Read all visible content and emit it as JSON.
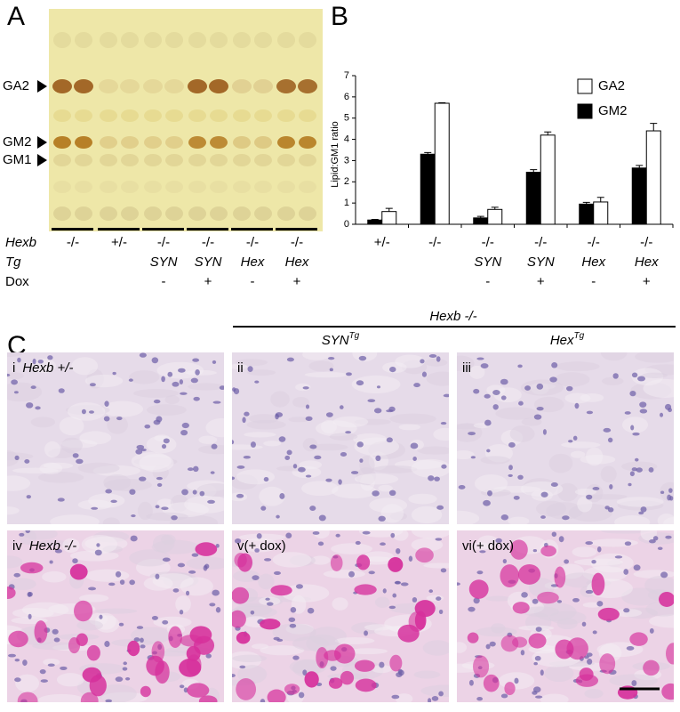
{
  "panel_labels": [
    "A",
    "B",
    "C"
  ],
  "panel_a": {
    "bands": [
      "GA2",
      "GM2",
      "GM1"
    ],
    "row_labels": [
      "Hexb",
      "Tg",
      "Dox"
    ],
    "genotype": [
      "-/-",
      "+/-",
      "-/-",
      "-/-",
      "-/-",
      "-/-"
    ],
    "tg": [
      null,
      null,
      "SYN",
      "SYN",
      "Hex",
      "Hex"
    ],
    "dox": [
      null,
      null,
      "-",
      "+",
      "-",
      "+"
    ]
  },
  "chart_data": {
    "type": "bar",
    "y_label": "Lipid:GM1 ratio",
    "categories": [
      "+/-",
      "-/-",
      "-/-",
      "-/-",
      "-/-",
      "-/-"
    ],
    "tg_labels": [
      null,
      null,
      "SYN",
      "SYN",
      "Hex",
      "Hex"
    ],
    "dox_labels": [
      null,
      null,
      "-",
      "+",
      "-",
      "+"
    ],
    "series": [
      {
        "name": "GM2",
        "color": "#000000",
        "values": [
          0.2,
          3.3,
          0.3,
          2.45,
          0.95,
          2.65
        ],
        "errors": [
          0.03,
          0.08,
          0.07,
          0.12,
          0.08,
          0.12
        ]
      },
      {
        "name": "GA2",
        "color": "#ffffff",
        "values": [
          0.6,
          5.7,
          0.7,
          4.2,
          1.05,
          4.4
        ],
        "errors": [
          0.15,
          0.02,
          0.1,
          0.15,
          0.22,
          0.35
        ]
      }
    ],
    "legend_order": [
      "GA2",
      "GM2"
    ],
    "ylim": [
      0,
      7
    ],
    "yticks": [
      0,
      1,
      2,
      3,
      4,
      5,
      6,
      7
    ]
  },
  "panel_c": {
    "header": "Hexb -/-",
    "columns": [
      {
        "name": "SYN",
        "sup": "Tg"
      },
      {
        "name": "Hex",
        "sup": "Tg"
      }
    ],
    "tiles": [
      {
        "numeral": "i",
        "text": "Hexb +/-"
      },
      {
        "numeral": "ii"
      },
      {
        "numeral": "iii"
      },
      {
        "numeral": "iv",
        "text": "Hexb -/-"
      },
      {
        "numeral": "v(+ dox)"
      },
      {
        "numeral": "vi(+ dox)"
      }
    ]
  }
}
